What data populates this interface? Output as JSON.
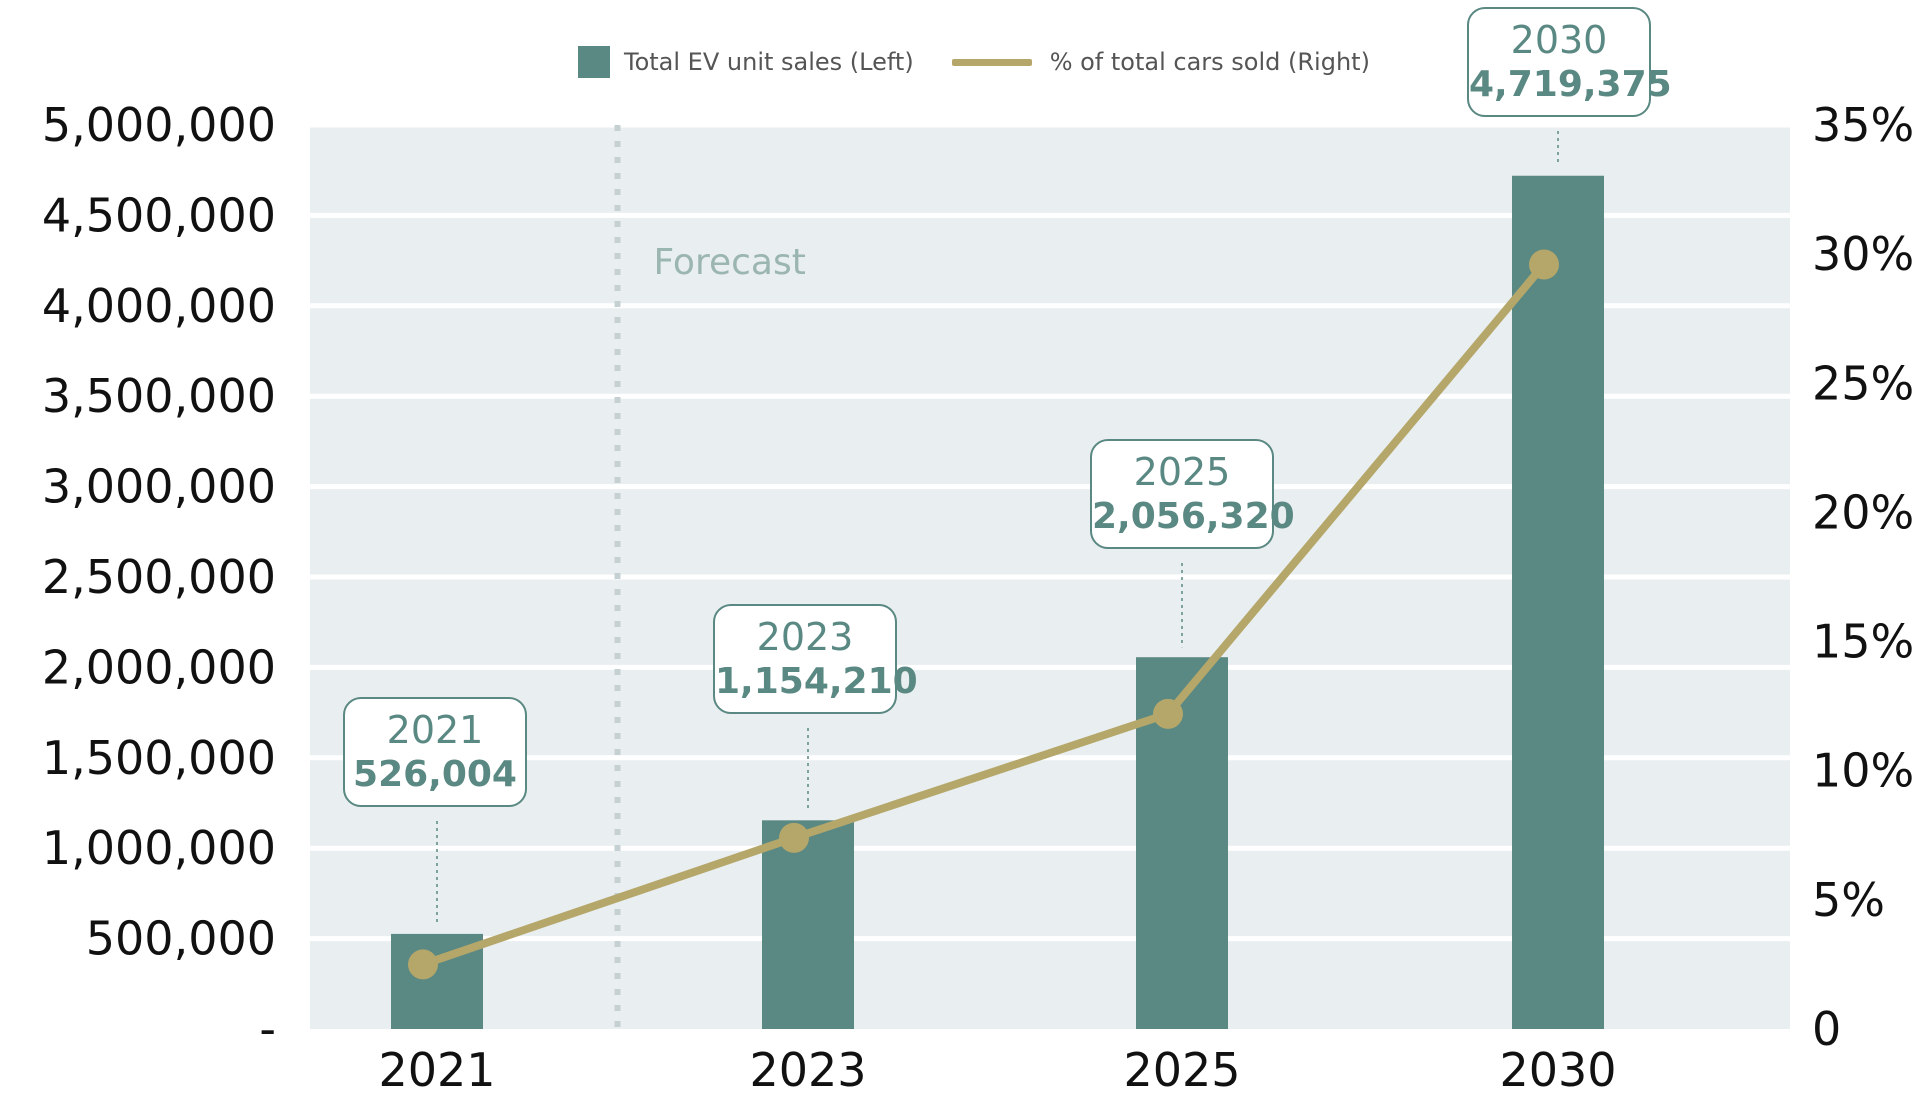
{
  "legend": {
    "bar_label": "Total EV unit sales (Left)",
    "line_label": "% of total cars sold (Right)"
  },
  "annotation": {
    "forecast_label": "Forecast"
  },
  "colors": {
    "bar": "#5a8882",
    "line": "#b5a76a",
    "plot_background": "#e9eef0",
    "gridline": "#ffffff",
    "forecast_divider": "#c5d0d3",
    "forecast_text": "#9bb5b0",
    "axis_text": "#111111"
  },
  "chart_data": {
    "type": "bar",
    "categories": [
      "2021",
      "2023",
      "2025",
      "2030"
    ],
    "series": [
      {
        "name": "Total EV unit sales (Left)",
        "type": "bar",
        "axis": "left",
        "values": [
          526004,
          1154210,
          2056320,
          4719375
        ]
      },
      {
        "name": "% of total cars sold (Right)",
        "type": "line",
        "axis": "right",
        "values": [
          2.5,
          7.4,
          12.2,
          29.6
        ]
      }
    ],
    "callouts": [
      {
        "category": "2021",
        "year": "2021",
        "value": "526,004"
      },
      {
        "category": "2023",
        "year": "2023",
        "value": "1,154,210"
      },
      {
        "category": "2025",
        "year": "2025",
        "value": "2,056,320"
      },
      {
        "category": "2030",
        "year": "2030",
        "value": "4,719,375"
      }
    ],
    "left_axis": {
      "ylim": [
        0,
        5000000
      ],
      "ticks": [
        0,
        500000,
        1000000,
        1500000,
        2000000,
        2500000,
        3000000,
        3500000,
        4000000,
        4500000,
        5000000
      ],
      "tick_labels": [
        "-",
        "500,000",
        "1,000,000",
        "1,500,000",
        "2,000,000",
        "2,500,000",
        "3,000,000",
        "3,500,000",
        "4,000,000",
        "4,500,000",
        "5,000,000"
      ]
    },
    "right_axis": {
      "ylim": [
        0,
        35
      ],
      "ticks": [
        0,
        5,
        10,
        15,
        20,
        25,
        30,
        35
      ],
      "tick_labels": [
        "0",
        "5%",
        "10%",
        "15%",
        "20%",
        "25%",
        "30%",
        "35%"
      ]
    },
    "forecast_divider_between": [
      "2021",
      "2023"
    ],
    "grid": true,
    "legend_position": "top-center"
  }
}
